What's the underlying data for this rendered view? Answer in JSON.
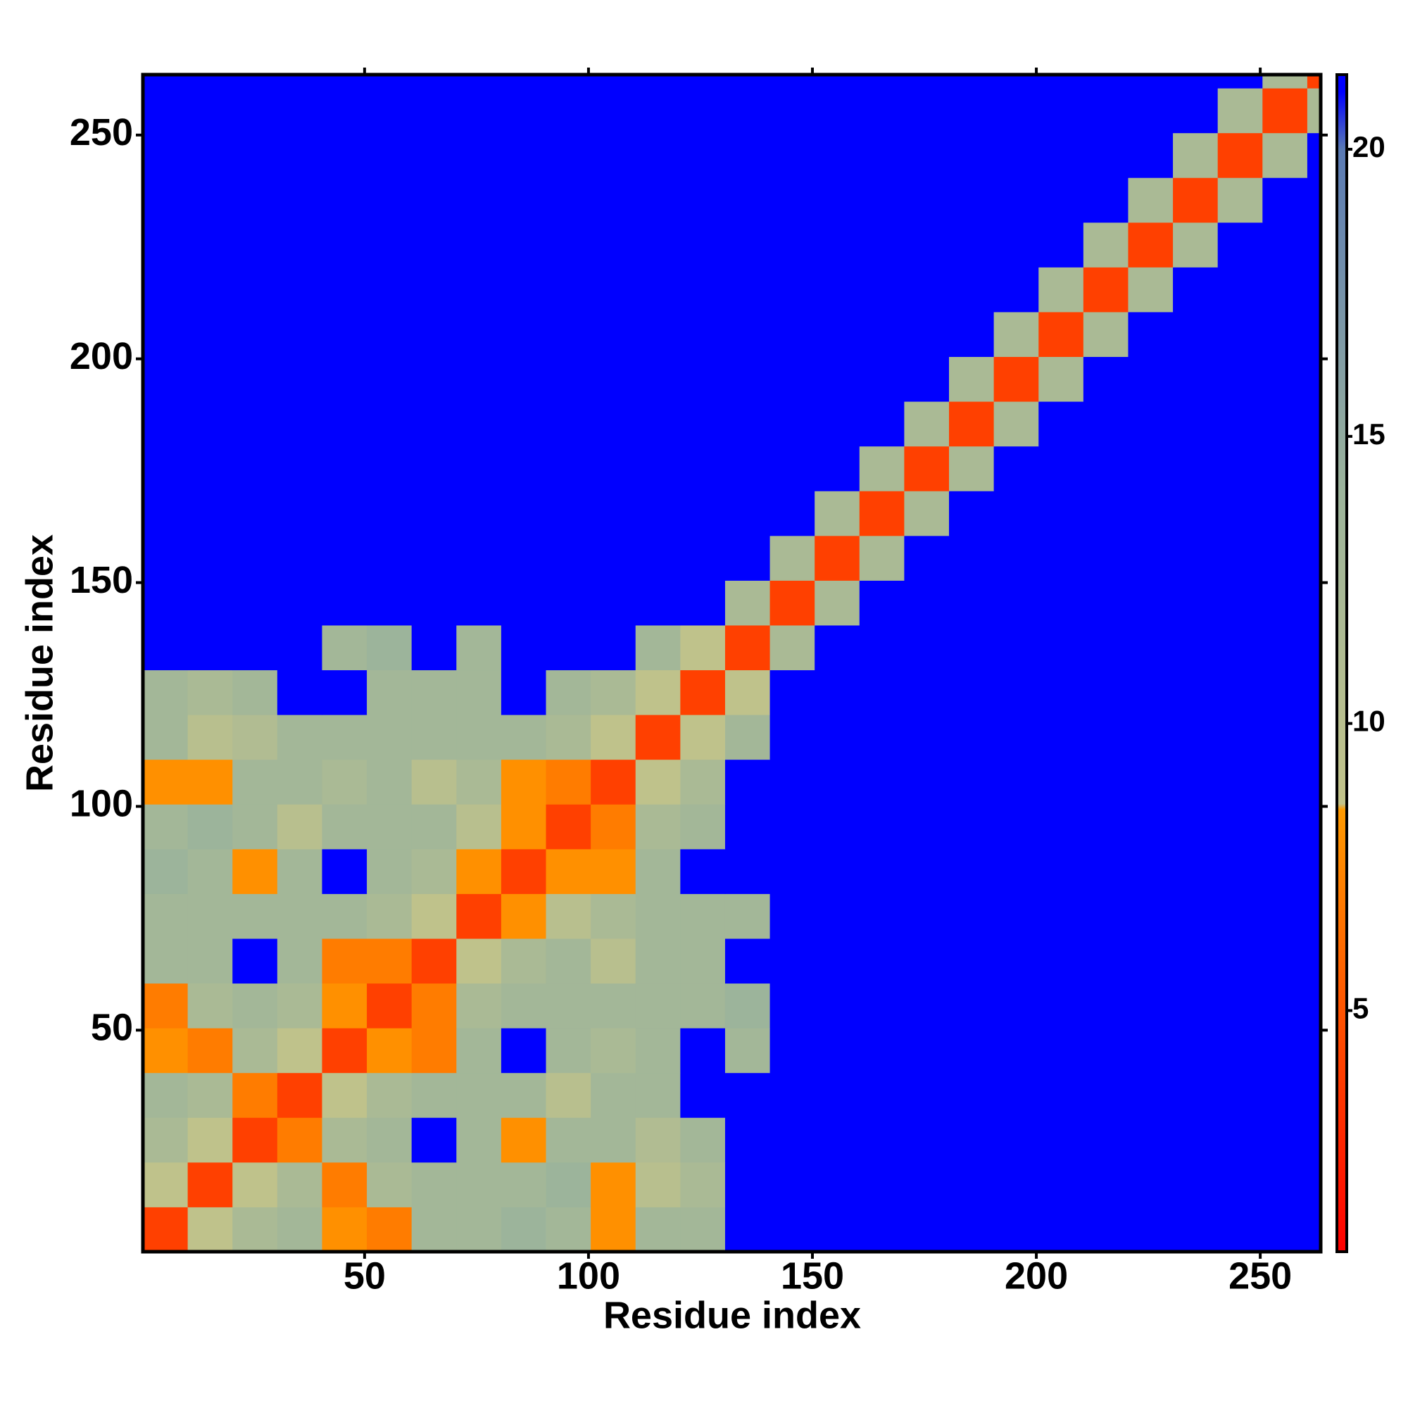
{
  "chart_data": {
    "type": "heatmap",
    "x_label": "Residue index",
    "y_label": "Residue index",
    "xlim": [
      0.5,
      263.5
    ],
    "ylim": [
      0.5,
      263.5
    ],
    "xticks": [
      50,
      100,
      150,
      200,
      250
    ],
    "yticks": [
      50,
      100,
      150,
      200,
      250
    ],
    "bins": [
      0.5,
      10.5,
      20.5,
      30.5,
      40.5,
      50.5,
      60.5,
      70.5,
      80.5,
      90.5,
      100.5,
      110.5,
      120.5,
      130.5,
      140.5,
      150.5,
      160.5,
      170.5,
      180.5,
      190.5,
      200.5,
      210.5,
      220.5,
      230.5,
      240.5,
      250.5,
      260.5,
      263.5
    ],
    "clim": [
      0.8,
      21.3
    ],
    "cticks": [
      5,
      10,
      15,
      20
    ],
    "colorscale": [
      {
        "value": 0.8,
        "color": "#ff0000"
      },
      {
        "value": 8.5,
        "color": "#ff9a00"
      },
      {
        "value": 8.6,
        "color": "#c2c38a"
      },
      {
        "value": 14,
        "color": "#9cb49b"
      },
      {
        "value": 20,
        "color": "#5a7ab4"
      },
      {
        "value": 21,
        "color": "#0000ff"
      },
      {
        "value": 21.3,
        "color": "#0000ff"
      }
    ],
    "z": [
      [
        4,
        9,
        12,
        13,
        8,
        7,
        13,
        13,
        14,
        13,
        8,
        13,
        13,
        21,
        21,
        21,
        21,
        21,
        21,
        21,
        21,
        21,
        21,
        21,
        21,
        21,
        21
      ],
      [
        9,
        4,
        9,
        12,
        7,
        12,
        13,
        13,
        13,
        14,
        8,
        10,
        12,
        21,
        21,
        21,
        21,
        21,
        21,
        21,
        21,
        21,
        21,
        21,
        21,
        21,
        21
      ],
      [
        12,
        9,
        4,
        7,
        12,
        13,
        21,
        13,
        8,
        13,
        13,
        11,
        13,
        21,
        21,
        21,
        21,
        21,
        21,
        21,
        21,
        21,
        21,
        21,
        21,
        21,
        21
      ],
      [
        13,
        12,
        7,
        4,
        9,
        12,
        13,
        13,
        13,
        10,
        13,
        13,
        21,
        21,
        21,
        21,
        21,
        21,
        21,
        21,
        21,
        21,
        21,
        21,
        21,
        21,
        21
      ],
      [
        8,
        7,
        12,
        9,
        4,
        8,
        7,
        13,
        21,
        13,
        12,
        13,
        21,
        13,
        21,
        21,
        21,
        21,
        21,
        21,
        21,
        21,
        21,
        21,
        21,
        21,
        21
      ],
      [
        7,
        12,
        13,
        12,
        8,
        4,
        7,
        12,
        13,
        13,
        13,
        13,
        13,
        14,
        21,
        21,
        21,
        21,
        21,
        21,
        21,
        21,
        21,
        21,
        21,
        21,
        21
      ],
      [
        13,
        13,
        21,
        13,
        7,
        7,
        4,
        9,
        12,
        13,
        10,
        13,
        13,
        21,
        21,
        21,
        21,
        21,
        21,
        21,
        21,
        21,
        21,
        21,
        21,
        21,
        21
      ],
      [
        13,
        13,
        13,
        13,
        13,
        12,
        9,
        4,
        8,
        10,
        12,
        13,
        13,
        13,
        21,
        21,
        21,
        21,
        21,
        21,
        21,
        21,
        21,
        21,
        21,
        21,
        21
      ],
      [
        14,
        13,
        8,
        13,
        21,
        13,
        12,
        8,
        4,
        8,
        8,
        13,
        21,
        21,
        21,
        21,
        21,
        21,
        21,
        21,
        21,
        21,
        21,
        21,
        21,
        21,
        21
      ],
      [
        13,
        14,
        13,
        10,
        13,
        13,
        13,
        10,
        8,
        4,
        7,
        12,
        13,
        21,
        21,
        21,
        21,
        21,
        21,
        21,
        21,
        21,
        21,
        21,
        21,
        21,
        21
      ],
      [
        8,
        8,
        13,
        13,
        12,
        13,
        10,
        12,
        8,
        7,
        4,
        9,
        12,
        21,
        21,
        21,
        21,
        21,
        21,
        21,
        21,
        21,
        21,
        21,
        21,
        21,
        21
      ],
      [
        13,
        10,
        11,
        13,
        13,
        13,
        13,
        13,
        13,
        12,
        9,
        4,
        9,
        13,
        21,
        21,
        21,
        21,
        21,
        21,
        21,
        21,
        21,
        21,
        21,
        21,
        21
      ],
      [
        13,
        12,
        13,
        21,
        21,
        13,
        13,
        13,
        21,
        13,
        12,
        9,
        4,
        9,
        21,
        21,
        21,
        21,
        21,
        21,
        21,
        21,
        21,
        21,
        21,
        21,
        21
      ],
      [
        21,
        21,
        21,
        21,
        13,
        14,
        21,
        13,
        21,
        21,
        21,
        13,
        9,
        4,
        12,
        21,
        21,
        21,
        21,
        21,
        21,
        21,
        21,
        21,
        21,
        21,
        21
      ],
      [
        21,
        21,
        21,
        21,
        21,
        21,
        21,
        21,
        21,
        21,
        21,
        21,
        21,
        12,
        4,
        12,
        21,
        21,
        21,
        21,
        21,
        21,
        21,
        21,
        21,
        21,
        21
      ],
      [
        21,
        21,
        21,
        21,
        21,
        21,
        21,
        21,
        21,
        21,
        21,
        21,
        21,
        21,
        12,
        4,
        12,
        21,
        21,
        21,
        21,
        21,
        21,
        21,
        21,
        21,
        21
      ],
      [
        21,
        21,
        21,
        21,
        21,
        21,
        21,
        21,
        21,
        21,
        21,
        21,
        21,
        21,
        21,
        12,
        4,
        12,
        21,
        21,
        21,
        21,
        21,
        21,
        21,
        21,
        21
      ],
      [
        21,
        21,
        21,
        21,
        21,
        21,
        21,
        21,
        21,
        21,
        21,
        21,
        21,
        21,
        21,
        21,
        12,
        4,
        12,
        21,
        21,
        21,
        21,
        21,
        21,
        21,
        21
      ],
      [
        21,
        21,
        21,
        21,
        21,
        21,
        21,
        21,
        21,
        21,
        21,
        21,
        21,
        21,
        21,
        21,
        21,
        12,
        4,
        12,
        21,
        21,
        21,
        21,
        21,
        21,
        21
      ],
      [
        21,
        21,
        21,
        21,
        21,
        21,
        21,
        21,
        21,
        21,
        21,
        21,
        21,
        21,
        21,
        21,
        21,
        21,
        12,
        4,
        12,
        21,
        21,
        21,
        21,
        21,
        21
      ],
      [
        21,
        21,
        21,
        21,
        21,
        21,
        21,
        21,
        21,
        21,
        21,
        21,
        21,
        21,
        21,
        21,
        21,
        21,
        21,
        12,
        4,
        12,
        21,
        21,
        21,
        21,
        21
      ],
      [
        21,
        21,
        21,
        21,
        21,
        21,
        21,
        21,
        21,
        21,
        21,
        21,
        21,
        21,
        21,
        21,
        21,
        21,
        21,
        21,
        12,
        4,
        12,
        21,
        21,
        21,
        21
      ],
      [
        21,
        21,
        21,
        21,
        21,
        21,
        21,
        21,
        21,
        21,
        21,
        21,
        21,
        21,
        21,
        21,
        21,
        21,
        21,
        21,
        21,
        12,
        4,
        12,
        21,
        21,
        21
      ],
      [
        21,
        21,
        21,
        21,
        21,
        21,
        21,
        21,
        21,
        21,
        21,
        21,
        21,
        21,
        21,
        21,
        21,
        21,
        21,
        21,
        21,
        21,
        12,
        4,
        12,
        21,
        21
      ],
      [
        21,
        21,
        21,
        21,
        21,
        21,
        21,
        21,
        21,
        21,
        21,
        21,
        21,
        21,
        21,
        21,
        21,
        21,
        21,
        21,
        21,
        21,
        21,
        12,
        4,
        12,
        21
      ],
      [
        21,
        21,
        21,
        21,
        21,
        21,
        21,
        21,
        21,
        21,
        21,
        21,
        21,
        21,
        21,
        21,
        21,
        21,
        21,
        21,
        21,
        21,
        21,
        21,
        12,
        4,
        12
      ],
      [
        21,
        21,
        21,
        21,
        21,
        21,
        21,
        21,
        21,
        21,
        21,
        21,
        21,
        21,
        21,
        21,
        21,
        21,
        21,
        21,
        21,
        21,
        21,
        21,
        21,
        12,
        4
      ]
    ]
  }
}
